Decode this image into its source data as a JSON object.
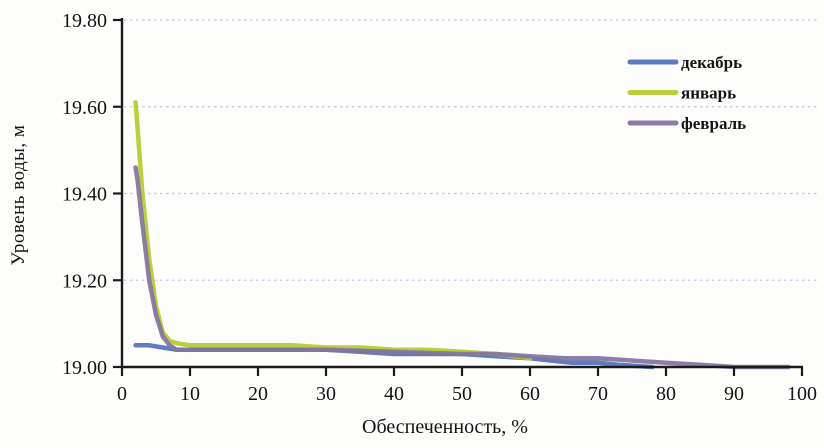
{
  "figure": {
    "background": "#fdfdfb",
    "axis_color": "#1a1a1a",
    "gridline_color": "#b9cfe6"
  },
  "chart_data": {
    "type": "line",
    "title": "",
    "xlabel": "Обеспеченность, %",
    "ylabel": "Уровень воды, м",
    "xlim": [
      0,
      100
    ],
    "ylim": [
      19.0,
      19.8
    ],
    "x_ticks": [
      0,
      10,
      20,
      30,
      40,
      50,
      60,
      70,
      80,
      90,
      100
    ],
    "x_tick_labels": [
      "0",
      "10",
      "20",
      "30",
      "40",
      "50",
      "60",
      "70",
      "80",
      "90",
      "100"
    ],
    "y_ticks": [
      19.0,
      19.2,
      19.4,
      19.6,
      19.8
    ],
    "y_tick_labels": [
      "19.00",
      "19.20",
      "19.40",
      "19.60",
      "19.80"
    ],
    "grid": "horizontal-dotted",
    "legend_position": "upper-right-inside",
    "series": [
      {
        "name": "декабрь",
        "color": "#4f72ba",
        "x": [
          2,
          4,
          6,
          8,
          10,
          15,
          20,
          25,
          30,
          35,
          40,
          45,
          50,
          55,
          60,
          63,
          66,
          70,
          73,
          78
        ],
        "y": [
          19.05,
          19.05,
          19.045,
          19.04,
          19.04,
          19.04,
          19.04,
          19.04,
          19.04,
          19.035,
          19.03,
          19.03,
          19.03,
          19.025,
          19.02,
          19.015,
          19.01,
          19.01,
          19.005,
          19.0
        ]
      },
      {
        "name": "январь",
        "color": "#b3cb2d",
        "x": [
          2,
          2.3,
          3,
          4,
          5,
          6,
          7,
          8,
          10,
          15,
          20,
          25,
          30,
          35,
          40,
          45,
          50,
          55,
          60
        ],
        "y": [
          19.61,
          19.55,
          19.4,
          19.25,
          19.14,
          19.08,
          19.06,
          19.055,
          19.05,
          19.05,
          19.05,
          19.05,
          19.045,
          19.045,
          19.04,
          19.04,
          19.035,
          19.03,
          19.02
        ]
      },
      {
        "name": "февраль",
        "color": "#83739f",
        "x": [
          2,
          2.3,
          3,
          4,
          5,
          6,
          7,
          8,
          10,
          15,
          20,
          30,
          40,
          50,
          55,
          60,
          65,
          70,
          75,
          80,
          85,
          90,
          98
        ],
        "y": [
          19.46,
          19.43,
          19.33,
          19.2,
          19.12,
          19.07,
          19.05,
          19.04,
          19.04,
          19.04,
          19.04,
          19.04,
          19.035,
          19.03,
          19.03,
          19.025,
          19.02,
          19.02,
          19.015,
          19.01,
          19.005,
          19.0,
          19.0
        ]
      }
    ]
  }
}
